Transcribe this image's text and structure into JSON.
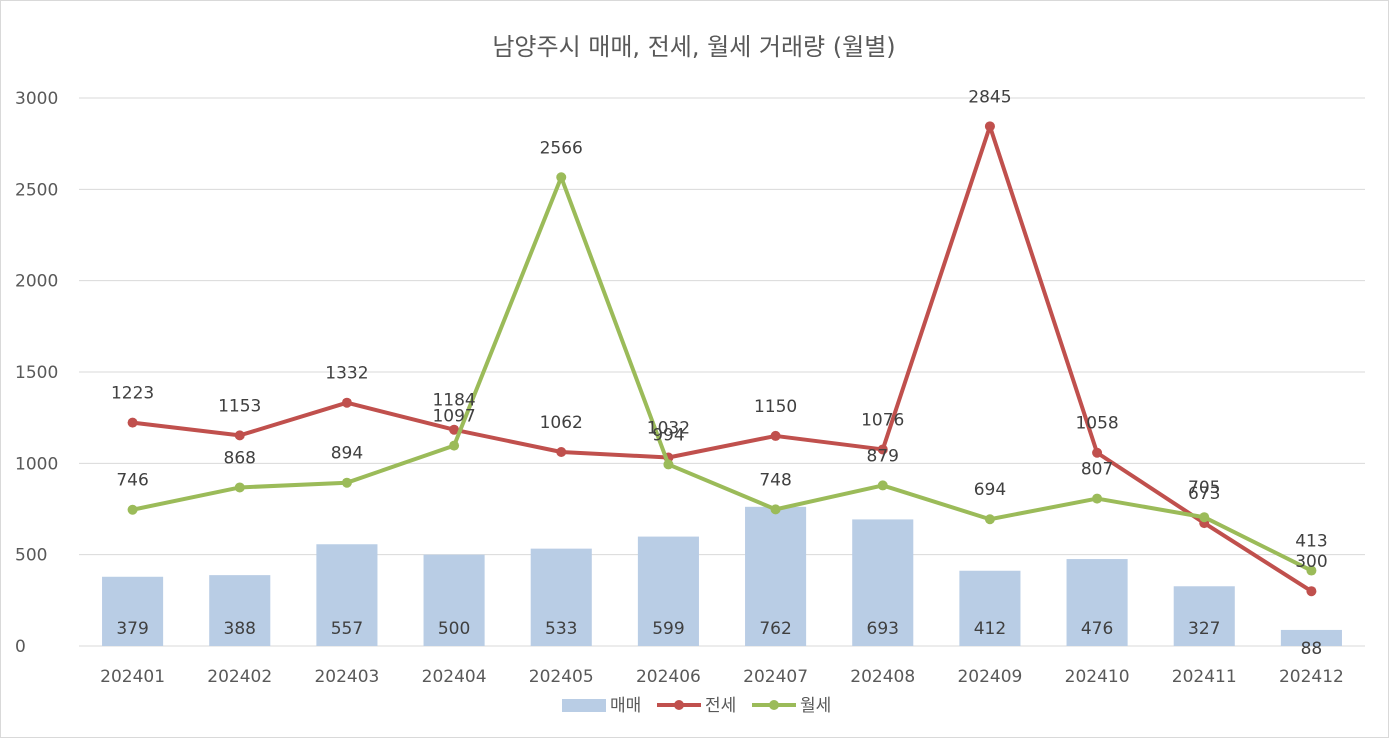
{
  "chart_data": {
    "type": "bar",
    "title": "남양주시 매매, 전세, 월세 거래량 (월별)",
    "categories": [
      "202401",
      "202402",
      "202403",
      "202404",
      "202405",
      "202406",
      "202407",
      "202408",
      "202409",
      "202410",
      "202411",
      "202412"
    ],
    "series": [
      {
        "name": "매매",
        "type": "bar",
        "color": "#b9cde5",
        "values": [
          379,
          388,
          557,
          500,
          533,
          599,
          762,
          693,
          412,
          476,
          327,
          88
        ]
      },
      {
        "name": "전세",
        "type": "line",
        "color": "#c0504d",
        "values": [
          1223,
          1153,
          1332,
          1184,
          1062,
          1032,
          1150,
          1076,
          2845,
          1058,
          673,
          300
        ]
      },
      {
        "name": "월세",
        "type": "line",
        "color": "#9bbb59",
        "values": [
          746,
          868,
          894,
          1097,
          2566,
          994,
          748,
          879,
          694,
          807,
          705,
          413
        ]
      }
    ],
    "yticks": [
      "0",
      "500",
      "1000",
      "1500",
      "2000",
      "2500",
      "3000"
    ],
    "ylim": [
      0,
      3000
    ],
    "grid": true,
    "legend": "bottom"
  }
}
